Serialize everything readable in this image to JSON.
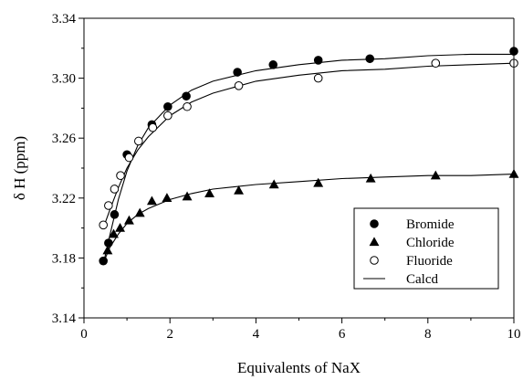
{
  "chart_data": {
    "type": "scatter",
    "xlabel": "Equivalents of NaX",
    "ylabel": "δ H (ppm)",
    "xlim": [
      0,
      10
    ],
    "ylim": [
      3.14,
      3.34
    ],
    "x_ticks": [
      0,
      2,
      4,
      6,
      8,
      10
    ],
    "y_ticks": [
      3.14,
      3.18,
      3.22,
      3.26,
      3.3,
      3.34
    ],
    "x_tick_labels": [
      "0",
      "2",
      "4",
      "6",
      "8",
      "10"
    ],
    "y_tick_labels": [
      "3.14",
      "3.18",
      "3.22",
      "3.26",
      "3.30",
      "3.34"
    ],
    "grid": false,
    "legend_position": "bottom-right",
    "series": [
      {
        "name": "Bromide",
        "marker": "filled-circle",
        "color": "#000000",
        "points": [
          [
            0.45,
            3.178
          ],
          [
            0.57,
            3.19
          ],
          [
            0.71,
            3.209
          ],
          [
            1.0,
            3.249
          ],
          [
            1.58,
            3.269
          ],
          [
            1.95,
            3.281
          ],
          [
            2.38,
            3.288
          ],
          [
            3.57,
            3.304
          ],
          [
            4.4,
            3.309
          ],
          [
            5.45,
            3.312
          ],
          [
            6.65,
            3.313
          ],
          [
            10.0,
            3.318
          ]
        ]
      },
      {
        "name": "Chloride",
        "marker": "filled-triangle",
        "color": "#000000",
        "points": [
          [
            0.55,
            3.185
          ],
          [
            0.69,
            3.196
          ],
          [
            0.84,
            3.2
          ],
          [
            1.05,
            3.205
          ],
          [
            1.3,
            3.21
          ],
          [
            1.58,
            3.218
          ],
          [
            1.93,
            3.22
          ],
          [
            2.4,
            3.221
          ],
          [
            2.92,
            3.223
          ],
          [
            3.6,
            3.225
          ],
          [
            4.42,
            3.229
          ],
          [
            5.45,
            3.23
          ],
          [
            6.67,
            3.233
          ],
          [
            8.18,
            3.235
          ],
          [
            10.0,
            3.236
          ]
        ]
      },
      {
        "name": "Fluoride",
        "marker": "open-circle",
        "color": "#000000",
        "points": [
          [
            0.45,
            3.202
          ],
          [
            0.57,
            3.215
          ],
          [
            0.71,
            3.226
          ],
          [
            0.85,
            3.235
          ],
          [
            1.05,
            3.247
          ],
          [
            1.27,
            3.258
          ],
          [
            1.6,
            3.267
          ],
          [
            1.95,
            3.275
          ],
          [
            2.4,
            3.281
          ],
          [
            3.6,
            3.295
          ],
          [
            5.45,
            3.3
          ],
          [
            8.18,
            3.31
          ],
          [
            10.0,
            3.31
          ]
        ]
      },
      {
        "name": "Calcd",
        "marker": "line",
        "color": "#000000",
        "curves": [
          [
            [
              0.45,
              3.176
            ],
            [
              0.6,
              3.195
            ],
            [
              0.8,
              3.219
            ],
            [
              1.0,
              3.238
            ],
            [
              1.25,
              3.255
            ],
            [
              1.5,
              3.267
            ],
            [
              2.0,
              3.282
            ],
            [
              2.5,
              3.292
            ],
            [
              3.0,
              3.298
            ],
            [
              4.0,
              3.305
            ],
            [
              5.0,
              3.309
            ],
            [
              6.0,
              3.312
            ],
            [
              7.0,
              3.313
            ],
            [
              8.0,
              3.315
            ],
            [
              9.0,
              3.316
            ],
            [
              10.0,
              3.316
            ]
          ],
          [
            [
              0.45,
              3.2
            ],
            [
              0.6,
              3.212
            ],
            [
              0.8,
              3.227
            ],
            [
              1.0,
              3.24
            ],
            [
              1.25,
              3.252
            ],
            [
              1.5,
              3.261
            ],
            [
              2.0,
              3.275
            ],
            [
              2.5,
              3.284
            ],
            [
              3.0,
              3.29
            ],
            [
              4.0,
              3.298
            ],
            [
              5.0,
              3.302
            ],
            [
              6.0,
              3.305
            ],
            [
              7.0,
              3.306
            ],
            [
              8.0,
              3.308
            ],
            [
              9.0,
              3.309
            ],
            [
              10.0,
              3.31
            ]
          ],
          [
            [
              0.5,
              3.18
            ],
            [
              0.6,
              3.187
            ],
            [
              0.8,
              3.196
            ],
            [
              1.0,
              3.203
            ],
            [
              1.25,
              3.209
            ],
            [
              1.5,
              3.213
            ],
            [
              2.0,
              3.219
            ],
            [
              2.5,
              3.223
            ],
            [
              3.0,
              3.226
            ],
            [
              4.0,
              3.229
            ],
            [
              5.0,
              3.231
            ],
            [
              6.0,
              3.233
            ],
            [
              7.0,
              3.234
            ],
            [
              8.0,
              3.235
            ],
            [
              9.0,
              3.235
            ],
            [
              10.0,
              3.236
            ]
          ]
        ]
      }
    ]
  }
}
